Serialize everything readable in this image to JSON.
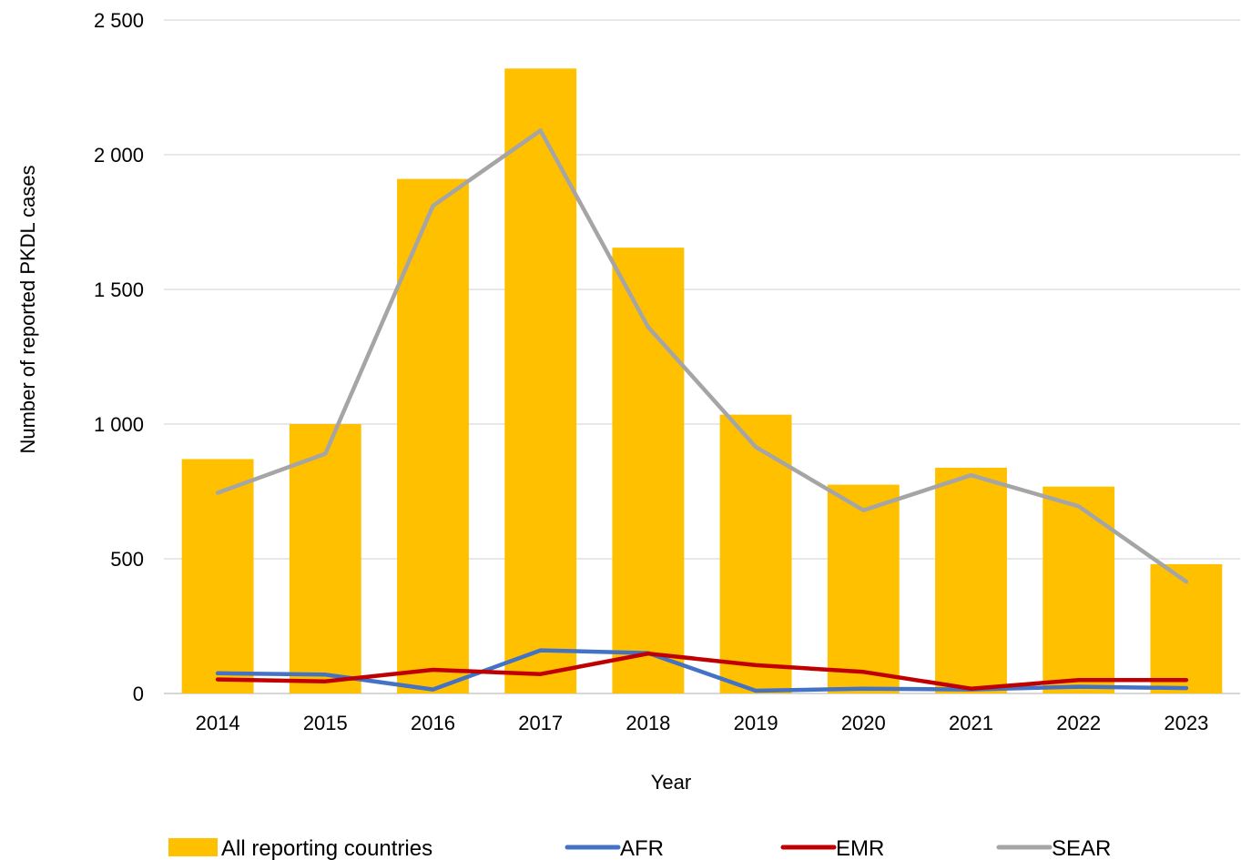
{
  "chart_data": {
    "type": "bar",
    "title": "",
    "xlabel": "Year",
    "ylabel": "Number of reported PKDL cases",
    "categories": [
      "2014",
      "2015",
      "2016",
      "2017",
      "2018",
      "2019",
      "2020",
      "2021",
      "2022",
      "2023"
    ],
    "ylim": [
      0,
      2500
    ],
    "yticks": [
      0,
      500,
      1000,
      1500,
      2000,
      2500
    ],
    "ytick_labels": [
      "0",
      "500",
      "1 000",
      "1 500",
      "2 000",
      "2 500"
    ],
    "grid": true,
    "legend_position": "bottom",
    "bars": {
      "name": "All reporting countries",
      "color": "#FFC000",
      "values": [
        870,
        1000,
        1910,
        2320,
        1655,
        1035,
        775,
        838,
        768,
        480
      ]
    },
    "series": [
      {
        "name": "AFR",
        "color": "#4472C4",
        "values": [
          75,
          70,
          15,
          160,
          150,
          10,
          18,
          15,
          25,
          20
        ]
      },
      {
        "name": "EMR",
        "color": "#C00000",
        "values": [
          52,
          45,
          88,
          72,
          148,
          105,
          80,
          18,
          50,
          50
        ]
      },
      {
        "name": "SEAR",
        "color": "#A5A5A5",
        "values": [
          745,
          890,
          1810,
          2090,
          1360,
          915,
          680,
          810,
          695,
          415
        ]
      }
    ]
  }
}
